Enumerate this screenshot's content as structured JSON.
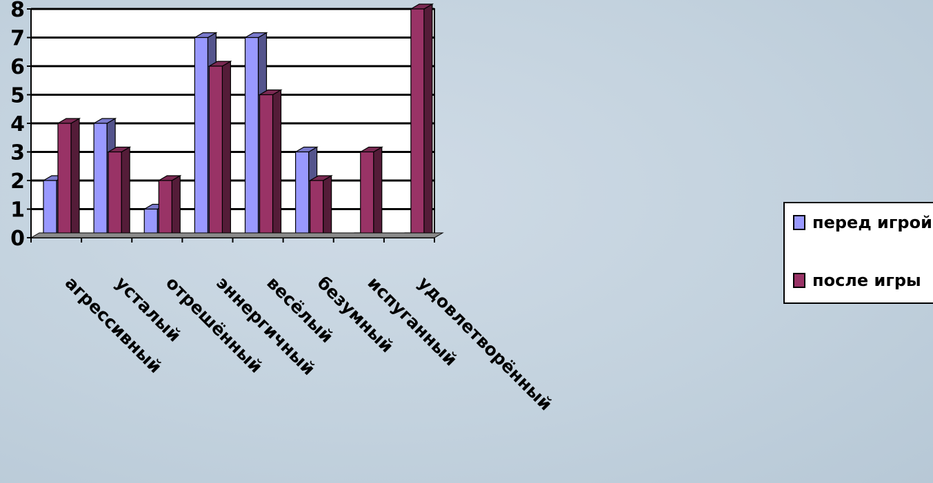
{
  "chart_data": {
    "type": "bar",
    "categories": [
      "агрессивный",
      "усталый",
      "отрешённый",
      "эннергичный",
      "весёлый",
      "безумный",
      "испуганный",
      "удовлетворённый"
    ],
    "series": [
      {
        "name": "перед игрой",
        "values": [
          2,
          4,
          1,
          7,
          7,
          3,
          0,
          0
        ],
        "color": "#9999ff"
      },
      {
        "name": "после игры",
        "values": [
          4,
          3,
          2,
          6,
          5,
          2,
          3,
          8
        ],
        "color": "#993366"
      }
    ],
    "ylim": [
      0,
      8
    ],
    "yticks": [
      "0",
      "1",
      "2",
      "3",
      "4",
      "5",
      "6",
      "7",
      "8"
    ],
    "grid": true,
    "legend_position": "right",
    "style": "3d-clustered-column"
  }
}
